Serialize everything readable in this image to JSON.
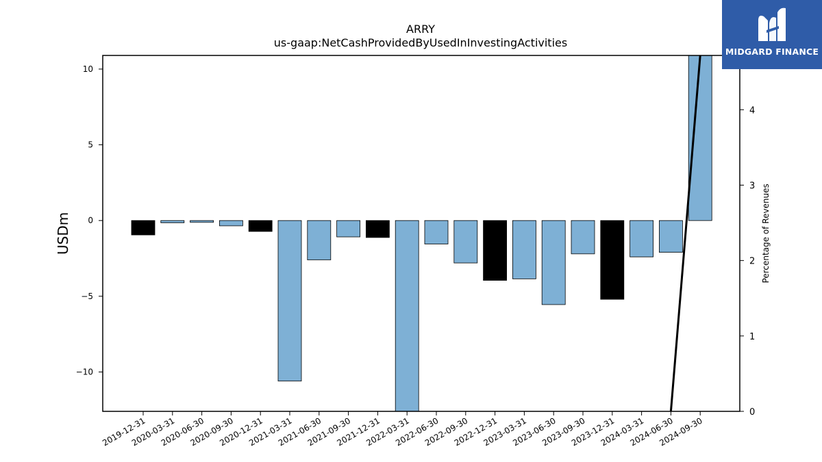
{
  "chart_data": {
    "type": "bar",
    "title": "ARRY",
    "subtitle": "us-gaap:NetCashProvidedByUsedInInvestingActivities",
    "ylabel": "USDm",
    "y2label": "Percentage of Revenues",
    "ylim": [
      -12.6,
      10.9
    ],
    "y2lim": [
      0,
      4.72
    ],
    "yticks": [
      -10,
      -5,
      0,
      5,
      10
    ],
    "y2ticks": [
      0,
      1,
      2,
      3,
      4
    ],
    "categories": [
      "2019-12-31",
      "2020-03-31",
      "2020-06-30",
      "2020-09-30",
      "2020-12-31",
      "2021-03-31",
      "2021-06-30",
      "2021-09-30",
      "2021-12-31",
      "2022-03-31",
      "2022-06-30",
      "2022-09-30",
      "2022-12-31",
      "2023-03-31",
      "2023-06-30",
      "2023-09-30",
      "2023-12-31",
      "2024-03-31",
      "2024-06-30",
      "2024-09-30"
    ],
    "values": [
      -0.95,
      -0.15,
      -0.12,
      -0.35,
      -0.72,
      -10.6,
      -2.6,
      -1.08,
      -1.12,
      -12.6,
      -1.55,
      -2.8,
      -3.95,
      -3.85,
      -5.55,
      -2.2,
      -5.2,
      -2.4,
      -2.1,
      10.9
    ],
    "bar_colors": [
      "#000000",
      "#7eb0d5",
      "#7eb0d5",
      "#7eb0d5",
      "#000000",
      "#7eb0d5",
      "#7eb0d5",
      "#7eb0d5",
      "#000000",
      "#7eb0d5",
      "#7eb0d5",
      "#7eb0d5",
      "#000000",
      "#7eb0d5",
      "#7eb0d5",
      "#7eb0d5",
      "#000000",
      "#7eb0d5",
      "#7eb0d5",
      "#7eb0d5"
    ],
    "line_series": {
      "axis": "right",
      "points": [
        {
          "x": "2024-06-30",
          "y": 0
        },
        {
          "x": "2024-09-30",
          "y": 4.72
        }
      ]
    },
    "grid": false
  },
  "brand": {
    "name": "MIDGARD FINANCE",
    "icon": "midgard-logo-icon",
    "color": "#2f5ca8"
  }
}
